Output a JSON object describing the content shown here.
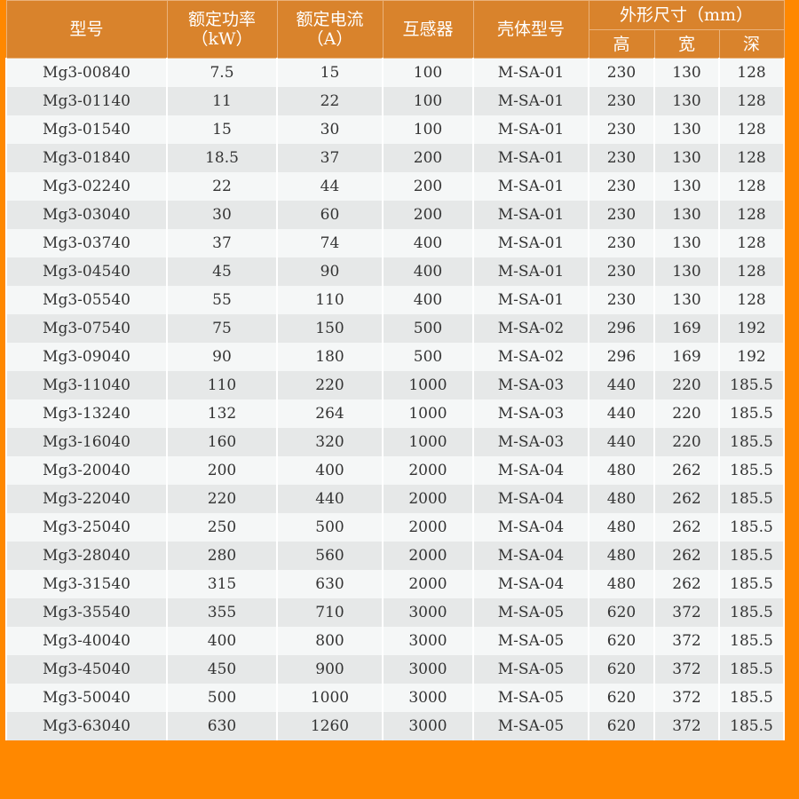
{
  "header": {
    "model": "型号",
    "power": "额定功率",
    "power_unit": "（kW）",
    "current": "额定电流",
    "current_unit": "（A）",
    "transformer": "互感器",
    "housing": "壳体型号",
    "dimensions": "外形尺寸（mm）",
    "height": "高",
    "width": "宽",
    "depth": "深"
  },
  "rows": [
    [
      "Mg3-00840",
      "7.5",
      "15",
      "100",
      "M-SA-01",
      "230",
      "130",
      "128"
    ],
    [
      "Mg3-01140",
      "11",
      "22",
      "100",
      "M-SA-01",
      "230",
      "130",
      "128"
    ],
    [
      "Mg3-01540",
      "15",
      "30",
      "100",
      "M-SA-01",
      "230",
      "130",
      "128"
    ],
    [
      "Mg3-01840",
      "18.5",
      "37",
      "200",
      "M-SA-01",
      "230",
      "130",
      "128"
    ],
    [
      "Mg3-02240",
      "22",
      "44",
      "200",
      "M-SA-01",
      "230",
      "130",
      "128"
    ],
    [
      "Mg3-03040",
      "30",
      "60",
      "200",
      "M-SA-01",
      "230",
      "130",
      "128"
    ],
    [
      "Mg3-03740",
      "37",
      "74",
      "400",
      "M-SA-01",
      "230",
      "130",
      "128"
    ],
    [
      "Mg3-04540",
      "45",
      "90",
      "400",
      "M-SA-01",
      "230",
      "130",
      "128"
    ],
    [
      "Mg3-05540",
      "55",
      "110",
      "400",
      "M-SA-01",
      "230",
      "130",
      "128"
    ],
    [
      "Mg3-07540",
      "75",
      "150",
      "500",
      "M-SA-02",
      "296",
      "169",
      "192"
    ],
    [
      "Mg3-09040",
      "90",
      "180",
      "500",
      "M-SA-02",
      "296",
      "169",
      "192"
    ],
    [
      "Mg3-11040",
      "110",
      "220",
      "1000",
      "M-SA-03",
      "440",
      "220",
      "185.5"
    ],
    [
      "Mg3-13240",
      "132",
      "264",
      "1000",
      "M-SA-03",
      "440",
      "220",
      "185.5"
    ],
    [
      "Mg3-16040",
      "160",
      "320",
      "1000",
      "M-SA-03",
      "440",
      "220",
      "185.5"
    ],
    [
      "Mg3-20040",
      "200",
      "400",
      "2000",
      "M-SA-04",
      "480",
      "262",
      "185.5"
    ],
    [
      "Mg3-22040",
      "220",
      "440",
      "2000",
      "M-SA-04",
      "480",
      "262",
      "185.5"
    ],
    [
      "Mg3-25040",
      "250",
      "500",
      "2000",
      "M-SA-04",
      "480",
      "262",
      "185.5"
    ],
    [
      "Mg3-28040",
      "280",
      "560",
      "2000",
      "M-SA-04",
      "480",
      "262",
      "185.5"
    ],
    [
      "Mg3-31540",
      "315",
      "630",
      "2000",
      "M-SA-04",
      "480",
      "262",
      "185.5"
    ],
    [
      "Mg3-35540",
      "355",
      "710",
      "3000",
      "M-SA-05",
      "620",
      "372",
      "185.5"
    ],
    [
      "Mg3-40040",
      "400",
      "800",
      "3000",
      "M-SA-05",
      "620",
      "372",
      "185.5"
    ],
    [
      "Mg3-45040",
      "450",
      "900",
      "3000",
      "M-SA-05",
      "620",
      "372",
      "185.5"
    ],
    [
      "Mg3-50040",
      "500",
      "1000",
      "3000",
      "M-SA-05",
      "620",
      "372",
      "185.5"
    ],
    [
      "Mg3-63040",
      "630",
      "1260",
      "3000",
      "M-SA-05",
      "620",
      "372",
      "185.5"
    ]
  ],
  "colors": {
    "frame": "#ff8800",
    "header": "#d9832c",
    "row_light": "#f5f7f7",
    "row_dark": "#e6e8e8"
  }
}
